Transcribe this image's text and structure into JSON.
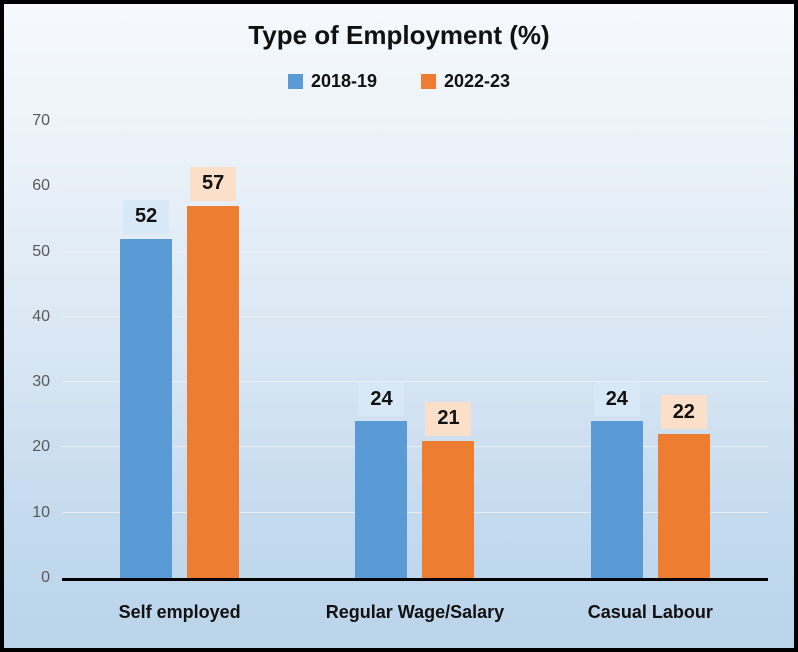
{
  "chart_data": {
    "type": "bar",
    "title": "Type of Employment (%)",
    "categories": [
      "Self employed",
      "Regular Wage/Salary",
      "Casual Labour"
    ],
    "series": [
      {
        "name": "2018-19",
        "color": "#5B9BD5",
        "label_bg": "#D9E8F6",
        "values": [
          52,
          24,
          24
        ]
      },
      {
        "name": "2022-23",
        "color": "#ED7D31",
        "label_bg": "#FBDFC8",
        "values": [
          57,
          21,
          22
        ]
      }
    ],
    "ylim": [
      0,
      70
    ],
    "yticks": [
      0,
      10,
      20,
      30,
      40,
      50,
      60,
      70
    ],
    "grid": true,
    "legend_position": "top",
    "value_labels_shown": true
  },
  "colors": {
    "frame_border": "#000000",
    "axis_line": "#000000",
    "ytick_text": "#595959",
    "gridline": "#EBEFF2",
    "title_text": "#111111",
    "background_top": "#F6F9FC",
    "background_bottom": "#BAD4EA"
  }
}
